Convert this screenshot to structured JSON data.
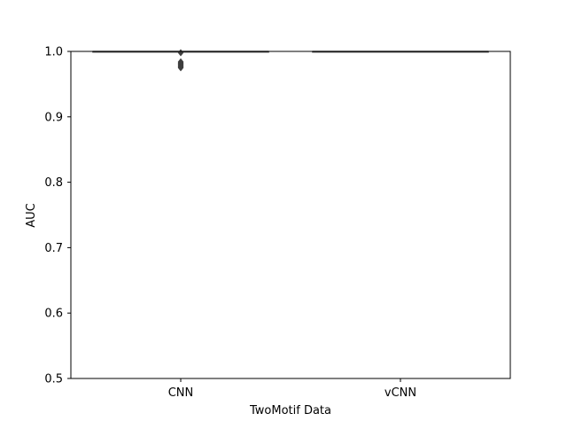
{
  "chart_data": {
    "type": "box",
    "title": "",
    "xlabel": "TwoMotif Data",
    "ylabel": "AUC",
    "categories": [
      "CNN",
      "vCNN"
    ],
    "ylim": [
      0.5,
      1.0
    ],
    "yticks": [
      0.5,
      0.6,
      0.7,
      0.8,
      0.9,
      1.0
    ],
    "ytick_labels": [
      "0.5",
      "0.6",
      "0.7",
      "0.8",
      "0.9",
      "1.0"
    ],
    "grid": false,
    "legend": "none",
    "boxes": [
      {
        "category": "CNN",
        "median": 1.0,
        "q1": 1.0,
        "q3": 1.0,
        "whisker_low": 1.0,
        "whisker_high": 1.0,
        "outliers": [
          0.998,
          0.984,
          0.983,
          0.982,
          0.981,
          0.98,
          0.979,
          0.978,
          0.977,
          0.976,
          0.975
        ]
      },
      {
        "category": "vCNN",
        "median": 1.0,
        "q1": 1.0,
        "q3": 1.0,
        "whisker_low": 1.0,
        "whisker_high": 1.0,
        "outliers": []
      }
    ],
    "colors": {
      "axis": "#000000",
      "box_line": "#3f3f3f",
      "outlier": "#3f3f3f"
    }
  }
}
